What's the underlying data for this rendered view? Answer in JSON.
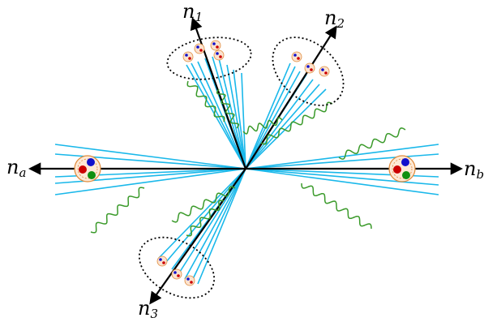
{
  "labels": {
    "n1": {
      "base": "n",
      "sub": "1"
    },
    "n2": {
      "base": "n",
      "sub": "2"
    },
    "n3": {
      "base": "n",
      "sub": "3"
    },
    "na": {
      "base": "n",
      "sub": "a"
    },
    "nb": {
      "base": "n",
      "sub": "b"
    }
  },
  "colors": {
    "axis": "#000000",
    "jet_line": "#1ab8ea",
    "gluon": "#3a9a2a",
    "cluster_outline": "#000000",
    "hadron_ring": "#e08a3a",
    "quark_blue": "#1010cc",
    "quark_red": "#cc0000",
    "quark_green": "#109010"
  },
  "legend": []
}
